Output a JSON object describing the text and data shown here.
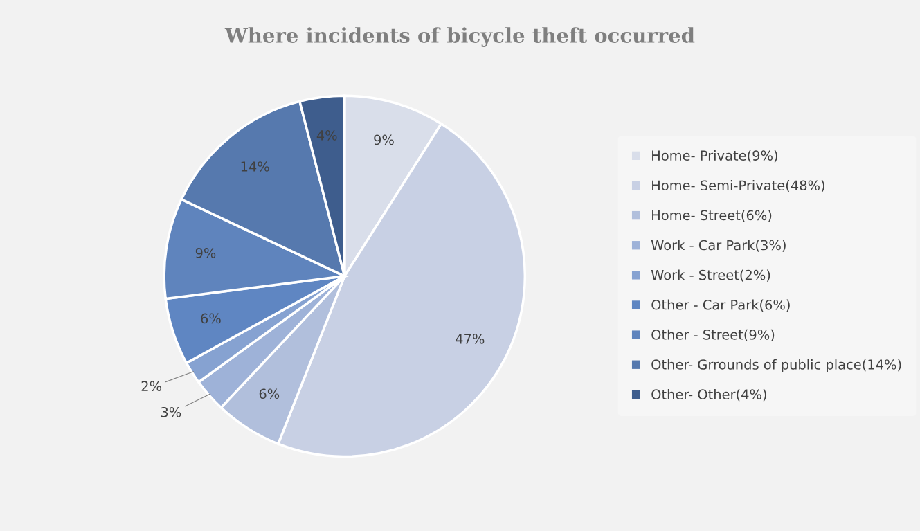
{
  "chart_data": {
    "type": "pie",
    "title": "Where incidents of bicycle theft occurred",
    "categories": [
      "Home- Private(9%)",
      "Home- Semi-Private(48%)",
      "Home- Street(6%)",
      "Work - Car Park(3%)",
      "Work - Street(2%)",
      "Other - Car Park(6%)",
      "Other - Street(9%)",
      "Other- Grrounds of public place(14%)",
      "Other- Other(4%)"
    ],
    "values": [
      9,
      47,
      6,
      3,
      2,
      6,
      9,
      14,
      4
    ],
    "value_labels": [
      "9%",
      "47%",
      "6%",
      "3%",
      "2%",
      "6%",
      "9%",
      "14%",
      "4%"
    ],
    "colors": [
      "#d9deea",
      "#c8d0e4",
      "#b1bfdc",
      "#9eb2d8",
      "#86a2d1",
      "#5f86c2",
      "#5f84bd",
      "#5679ae",
      "#3e5d8d"
    ],
    "legend": "right"
  }
}
